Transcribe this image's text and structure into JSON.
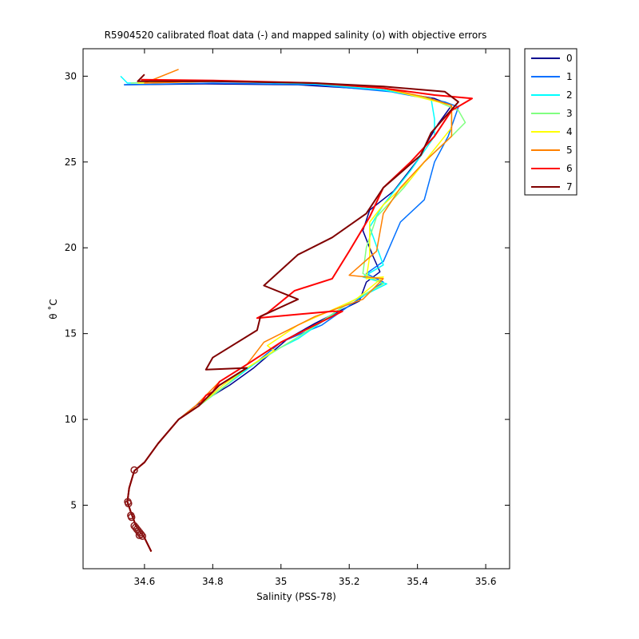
{
  "chart_data": {
    "type": "line",
    "title": "R5904520 calibrated float data (-) and mapped salinity (o) with objective errors",
    "xlabel": "Salinity (PSS-78)",
    "ylabel": "θ ˚C",
    "xlim": [
      34.42,
      35.67
    ],
    "ylim": [
      1.3,
      31.6
    ],
    "xticks": [
      34.6,
      34.8,
      35,
      35.2,
      35.4,
      35.6
    ],
    "xtick_labels": [
      "34.6",
      "34.8",
      "35",
      "35.2",
      "35.4",
      "35.6"
    ],
    "yticks": [
      5,
      10,
      15,
      20,
      25,
      30
    ],
    "ytick_labels": [
      "5",
      "10",
      "15",
      "20",
      "25",
      "30"
    ],
    "grid": false,
    "legend_position": "outside-top-right",
    "series": [
      {
        "name": "0",
        "color": "#00008f",
        "points": [
          [
            34.54,
            29.5
          ],
          [
            34.78,
            29.55
          ],
          [
            35.05,
            29.5
          ],
          [
            35.3,
            29.2
          ],
          [
            35.45,
            28.7
          ],
          [
            35.5,
            28.3
          ],
          [
            35.46,
            27.2
          ],
          [
            35.43,
            26.2
          ],
          [
            35.4,
            25.1
          ],
          [
            35.33,
            23.3
          ],
          [
            35.26,
            22.2
          ],
          [
            35.24,
            21.0
          ],
          [
            35.27,
            19.5
          ],
          [
            35.29,
            18.6
          ],
          [
            35.25,
            18.0
          ],
          [
            35.23,
            16.9
          ],
          [
            35.1,
            15.6
          ],
          [
            35.02,
            14.7
          ],
          [
            34.92,
            13.0
          ],
          [
            34.85,
            12.0
          ],
          [
            34.75,
            10.8
          ],
          [
            34.7,
            10.0
          ],
          [
            34.64,
            8.6
          ],
          [
            34.6,
            7.5
          ],
          [
            34.57,
            7.0
          ],
          [
            34.555,
            6.0
          ],
          [
            34.55,
            5.2
          ],
          [
            34.56,
            4.6
          ],
          [
            34.575,
            3.8
          ],
          [
            34.6,
            3.1
          ],
          [
            34.62,
            2.3
          ]
        ]
      },
      {
        "name": "1",
        "color": "#0070ff",
        "points": [
          [
            34.54,
            29.5
          ],
          [
            34.8,
            29.6
          ],
          [
            35.1,
            29.5
          ],
          [
            35.32,
            29.1
          ],
          [
            35.48,
            28.5
          ],
          [
            35.52,
            28.2
          ],
          [
            35.49,
            26.5
          ],
          [
            35.45,
            25.0
          ],
          [
            35.42,
            22.8
          ],
          [
            35.35,
            21.5
          ],
          [
            35.3,
            19.2
          ],
          [
            35.25,
            18.5
          ],
          [
            35.3,
            18.0
          ],
          [
            35.22,
            16.9
          ],
          [
            35.12,
            15.5
          ],
          [
            35.0,
            14.5
          ],
          [
            34.92,
            13.2
          ],
          [
            34.84,
            12.0
          ],
          [
            34.76,
            10.8
          ],
          [
            34.7,
            10.0
          ],
          [
            34.64,
            8.6
          ],
          [
            34.6,
            7.5
          ],
          [
            34.57,
            7.0
          ],
          [
            34.555,
            6.0
          ],
          [
            34.55,
            5.2
          ],
          [
            34.56,
            4.6
          ],
          [
            34.575,
            3.8
          ],
          [
            34.6,
            3.1
          ],
          [
            34.62,
            2.3
          ]
        ]
      },
      {
        "name": "2",
        "color": "#00ffff",
        "points": [
          [
            34.53,
            30.0
          ],
          [
            34.55,
            29.6
          ],
          [
            34.8,
            29.7
          ],
          [
            35.1,
            29.55
          ],
          [
            35.3,
            29.2
          ],
          [
            35.44,
            28.7
          ],
          [
            35.45,
            27.5
          ],
          [
            35.45,
            26.5
          ],
          [
            35.38,
            24.5
          ],
          [
            35.3,
            22.5
          ],
          [
            35.26,
            21.2
          ],
          [
            35.3,
            19.0
          ],
          [
            35.24,
            18.3
          ],
          [
            35.31,
            17.9
          ],
          [
            35.2,
            16.8
          ],
          [
            35.05,
            14.7
          ],
          [
            35.0,
            14.2
          ],
          [
            34.92,
            13.2
          ],
          [
            34.84,
            12.0
          ],
          [
            34.76,
            10.8
          ],
          [
            34.7,
            10.0
          ],
          [
            34.64,
            8.6
          ],
          [
            34.6,
            7.5
          ],
          [
            34.57,
            7.0
          ],
          [
            34.555,
            6.0
          ],
          [
            34.55,
            5.2
          ],
          [
            34.56,
            4.6
          ],
          [
            34.575,
            3.8
          ],
          [
            34.6,
            3.1
          ],
          [
            34.62,
            2.3
          ]
        ]
      },
      {
        "name": "3",
        "color": "#80ff80",
        "points": [
          [
            34.56,
            29.6
          ],
          [
            34.8,
            29.7
          ],
          [
            35.1,
            29.6
          ],
          [
            35.3,
            29.3
          ],
          [
            35.45,
            28.6
          ],
          [
            35.52,
            28.0
          ],
          [
            35.54,
            27.3
          ],
          [
            35.5,
            26.5
          ],
          [
            35.42,
            25.0
          ],
          [
            35.36,
            23.5
          ],
          [
            35.28,
            21.8
          ],
          [
            35.25,
            20.0
          ],
          [
            35.24,
            18.5
          ],
          [
            35.3,
            17.9
          ],
          [
            35.2,
            16.8
          ],
          [
            35.05,
            14.8
          ],
          [
            35.0,
            14.2
          ],
          [
            34.9,
            13.0
          ],
          [
            34.84,
            12.0
          ],
          [
            34.76,
            10.8
          ],
          [
            34.7,
            10.0
          ],
          [
            34.64,
            8.6
          ],
          [
            34.6,
            7.5
          ],
          [
            34.57,
            7.0
          ],
          [
            34.555,
            6.0
          ],
          [
            34.55,
            5.2
          ],
          [
            34.56,
            4.6
          ],
          [
            34.575,
            3.8
          ],
          [
            34.6,
            3.1
          ],
          [
            34.62,
            2.3
          ]
        ]
      },
      {
        "name": "4",
        "color": "#ffff00",
        "points": [
          [
            34.58,
            29.6
          ],
          [
            34.8,
            29.7
          ],
          [
            35.1,
            29.6
          ],
          [
            35.3,
            29.3
          ],
          [
            35.42,
            28.7
          ],
          [
            35.5,
            28.3
          ],
          [
            35.5,
            27.0
          ],
          [
            35.44,
            25.5
          ],
          [
            35.38,
            24.0
          ],
          [
            35.3,
            22.5
          ],
          [
            35.26,
            21.5
          ],
          [
            35.26,
            19.5
          ],
          [
            35.25,
            18.2
          ],
          [
            35.3,
            18.3
          ],
          [
            35.22,
            17.0
          ],
          [
            35.05,
            15.5
          ],
          [
            34.96,
            14.3
          ],
          [
            34.98,
            14.0
          ],
          [
            34.9,
            13.0
          ],
          [
            34.83,
            12.0
          ],
          [
            34.76,
            10.8
          ],
          [
            34.7,
            10.0
          ],
          [
            34.64,
            8.6
          ],
          [
            34.6,
            7.5
          ],
          [
            34.57,
            7.0
          ],
          [
            34.555,
            6.0
          ],
          [
            34.55,
            5.2
          ],
          [
            34.56,
            4.6
          ],
          [
            34.575,
            3.8
          ],
          [
            34.6,
            3.1
          ],
          [
            34.62,
            2.3
          ]
        ]
      },
      {
        "name": "5",
        "color": "#ff8000",
        "points": [
          [
            34.7,
            30.4
          ],
          [
            34.6,
            29.6
          ],
          [
            34.8,
            29.7
          ],
          [
            35.1,
            29.6
          ],
          [
            35.3,
            29.3
          ],
          [
            35.42,
            28.8
          ],
          [
            35.5,
            28.3
          ],
          [
            35.5,
            26.5
          ],
          [
            35.42,
            25.0
          ],
          [
            35.35,
            23.5
          ],
          [
            35.3,
            22.0
          ],
          [
            35.28,
            19.8
          ],
          [
            35.2,
            18.4
          ],
          [
            35.3,
            18.2
          ],
          [
            35.24,
            17.0
          ],
          [
            35.1,
            16.0
          ],
          [
            34.95,
            14.5
          ],
          [
            34.9,
            13.2
          ],
          [
            34.82,
            12.2
          ],
          [
            34.75,
            10.8
          ],
          [
            34.7,
            10.0
          ],
          [
            34.64,
            8.6
          ],
          [
            34.6,
            7.5
          ],
          [
            34.57,
            7.0
          ],
          [
            34.555,
            6.0
          ],
          [
            34.55,
            5.2
          ],
          [
            34.56,
            4.6
          ],
          [
            34.575,
            3.8
          ],
          [
            34.6,
            3.1
          ],
          [
            34.62,
            2.3
          ]
        ]
      },
      {
        "name": "6",
        "color": "#ff0000",
        "points": [
          [
            34.59,
            29.8
          ],
          [
            34.8,
            29.75
          ],
          [
            35.1,
            29.6
          ],
          [
            35.3,
            29.3
          ],
          [
            35.45,
            28.9
          ],
          [
            35.56,
            28.7
          ],
          [
            35.5,
            28.0
          ],
          [
            35.45,
            26.5
          ],
          [
            35.38,
            25.0
          ],
          [
            35.3,
            23.5
          ],
          [
            35.26,
            21.8
          ],
          [
            35.2,
            19.8
          ],
          [
            35.15,
            18.2
          ],
          [
            35.04,
            17.5
          ],
          [
            34.96,
            16.2
          ],
          [
            34.93,
            15.9
          ],
          [
            35.15,
            16.3
          ],
          [
            35.18,
            16.3
          ],
          [
            35.1,
            15.5
          ],
          [
            35.0,
            14.5
          ],
          [
            34.9,
            13.2
          ],
          [
            34.82,
            12.2
          ],
          [
            34.8,
            11.6
          ],
          [
            34.78,
            11.4
          ],
          [
            34.76,
            10.8
          ],
          [
            34.7,
            10.0
          ],
          [
            34.64,
            8.6
          ],
          [
            34.6,
            7.5
          ],
          [
            34.57,
            7.0
          ],
          [
            34.555,
            6.0
          ],
          [
            34.55,
            5.2
          ],
          [
            34.56,
            4.6
          ],
          [
            34.575,
            3.8
          ],
          [
            34.6,
            3.1
          ],
          [
            34.62,
            2.3
          ]
        ]
      },
      {
        "name": "7",
        "color": "#800000",
        "points": [
          [
            34.6,
            30.1
          ],
          [
            34.58,
            29.7
          ],
          [
            34.8,
            29.7
          ],
          [
            35.1,
            29.6
          ],
          [
            35.3,
            29.4
          ],
          [
            35.48,
            29.1
          ],
          [
            35.52,
            28.5
          ],
          [
            35.44,
            26.7
          ],
          [
            35.41,
            25.4
          ],
          [
            35.3,
            23.5
          ],
          [
            35.25,
            22.0
          ],
          [
            35.15,
            20.6
          ],
          [
            35.05,
            19.6
          ],
          [
            34.95,
            17.8
          ],
          [
            35.05,
            17.0
          ],
          [
            34.94,
            16.0
          ],
          [
            34.93,
            15.2
          ],
          [
            34.8,
            13.6
          ],
          [
            34.78,
            12.9
          ],
          [
            34.9,
            13.0
          ],
          [
            34.82,
            12.0
          ],
          [
            34.76,
            10.8
          ],
          [
            34.7,
            10.0
          ],
          [
            34.64,
            8.6
          ],
          [
            34.6,
            7.5
          ],
          [
            34.57,
            7.0
          ],
          [
            34.555,
            6.0
          ],
          [
            34.55,
            5.2
          ],
          [
            34.56,
            4.6
          ],
          [
            34.575,
            3.8
          ],
          [
            34.6,
            3.1
          ],
          [
            34.62,
            2.3
          ]
        ]
      }
    ],
    "mapped_points": {
      "color": "#8b1a1a",
      "points": [
        [
          34.551,
          5.2
        ],
        [
          34.553,
          5.1
        ],
        [
          34.56,
          4.4
        ],
        [
          34.562,
          4.3
        ],
        [
          34.57,
          3.8
        ],
        [
          34.574,
          3.7
        ],
        [
          34.578,
          3.6
        ],
        [
          34.582,
          3.5
        ],
        [
          34.586,
          3.4
        ],
        [
          34.59,
          3.3
        ],
        [
          34.594,
          3.2
        ],
        [
          34.57,
          7.05
        ],
        [
          34.585,
          3.25
        ]
      ]
    }
  }
}
